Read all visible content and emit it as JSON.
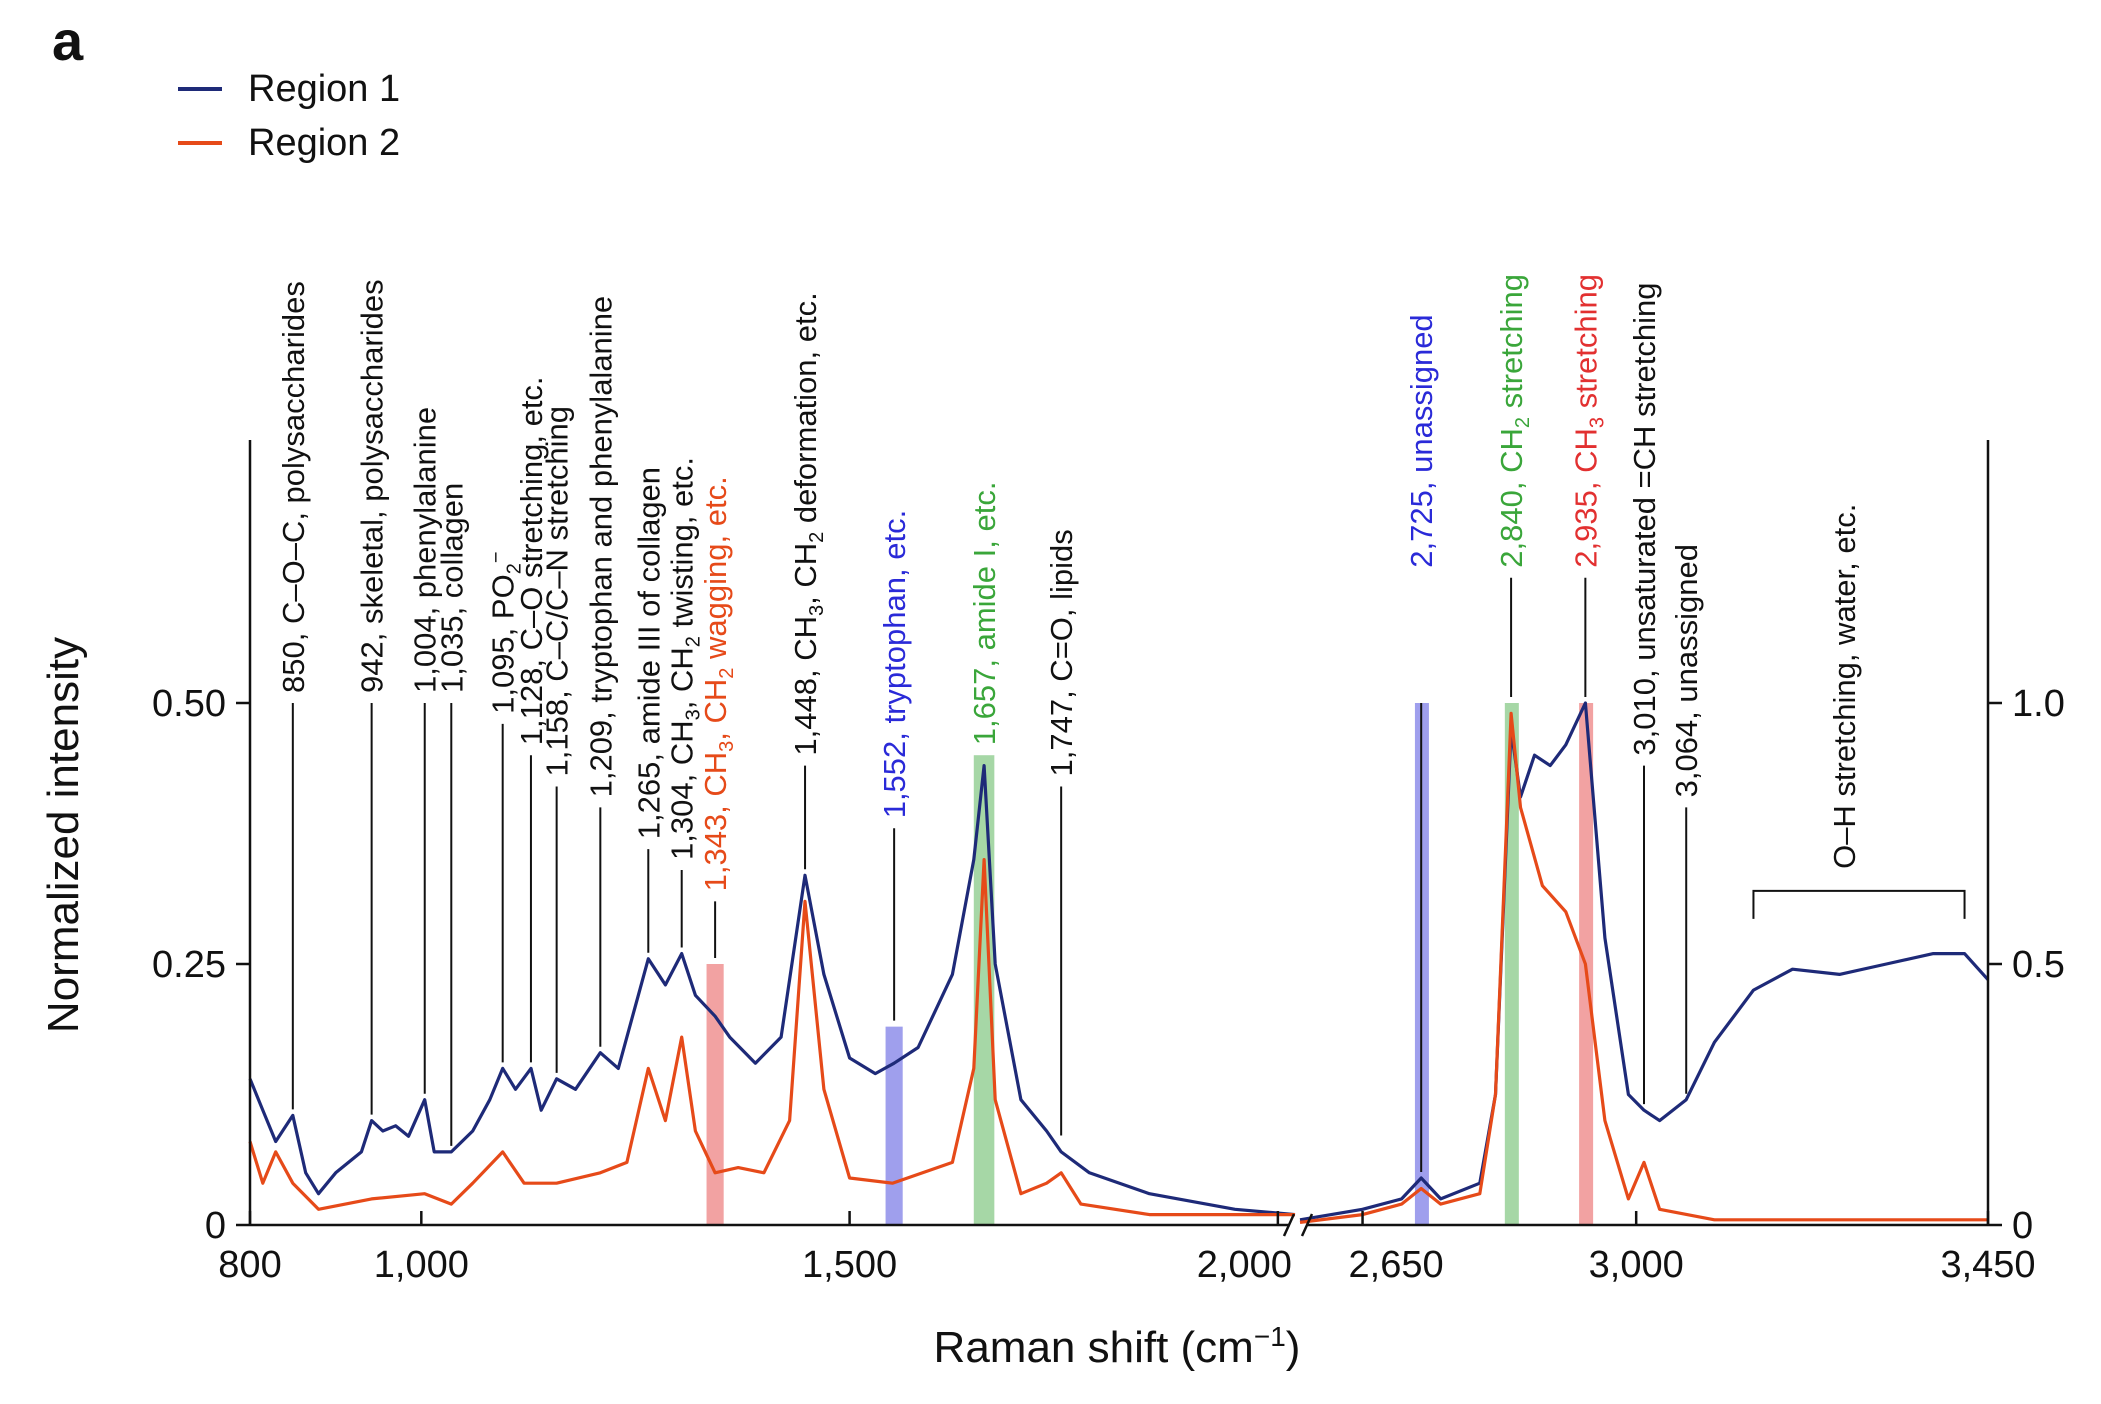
{
  "panel_label": "a",
  "colors": {
    "region1": "#1e2a78",
    "region2": "#e64a19",
    "black": "#111111",
    "blue": "#2a2ad8",
    "green": "#3aa63a",
    "red": "#e23030"
  },
  "chart_data": {
    "type": "line",
    "xlabel": "Raman shift (cm",
    "xlabel_sup": "−1",
    "xlabel_close": ")",
    "ylabel": "Normalized intensity",
    "legend_placement": "top-left",
    "segments": [
      {
        "xlim": [
          800,
          2020
        ]
      },
      {
        "xlim": [
          2570,
          3450
        ]
      }
    ],
    "ylim_left": [
      0,
      0.5
    ],
    "ylim_right": [
      0,
      1.0
    ],
    "x_ticks_left": [
      {
        "v": 800,
        "label": "800"
      },
      {
        "v": 1000,
        "label": "1,000"
      },
      {
        "v": 1500,
        "label": "1,500"
      },
      {
        "v": 2000,
        "label": "2,000"
      }
    ],
    "x_ticks_right": [
      {
        "v": 2650,
        "label": "2,650"
      },
      {
        "v": 3000,
        "label": "3,000"
      },
      {
        "v": 3450,
        "label": "3,450"
      }
    ],
    "y_ticks_left": [
      {
        "v": 0,
        "label": "0"
      },
      {
        "v": 0.25,
        "label": "0.25"
      },
      {
        "v": 0.5,
        "label": "0.50"
      }
    ],
    "y_ticks_right": [
      {
        "v": 0,
        "label": "0"
      },
      {
        "v": 0.5,
        "label": "0.5"
      },
      {
        "v": 1.0,
        "label": "1.0"
      }
    ],
    "series": [
      {
        "name": "Region 1",
        "left": [
          [
            800,
            0.14
          ],
          [
            815,
            0.11
          ],
          [
            830,
            0.08
          ],
          [
            850,
            0.105
          ],
          [
            865,
            0.05
          ],
          [
            880,
            0.03
          ],
          [
            900,
            0.05
          ],
          [
            930,
            0.07
          ],
          [
            942,
            0.1
          ],
          [
            955,
            0.09
          ],
          [
            970,
            0.095
          ],
          [
            985,
            0.085
          ],
          [
            1004,
            0.12
          ],
          [
            1015,
            0.07
          ],
          [
            1035,
            0.07
          ],
          [
            1060,
            0.09
          ],
          [
            1080,
            0.12
          ],
          [
            1095,
            0.15
          ],
          [
            1110,
            0.13
          ],
          [
            1128,
            0.15
          ],
          [
            1140,
            0.11
          ],
          [
            1158,
            0.14
          ],
          [
            1180,
            0.13
          ],
          [
            1209,
            0.165
          ],
          [
            1230,
            0.15
          ],
          [
            1265,
            0.255
          ],
          [
            1285,
            0.23
          ],
          [
            1304,
            0.26
          ],
          [
            1320,
            0.22
          ],
          [
            1343,
            0.2
          ],
          [
            1360,
            0.18
          ],
          [
            1390,
            0.155
          ],
          [
            1420,
            0.18
          ],
          [
            1448,
            0.335
          ],
          [
            1470,
            0.24
          ],
          [
            1500,
            0.16
          ],
          [
            1530,
            0.145
          ],
          [
            1552,
            0.155
          ],
          [
            1580,
            0.17
          ],
          [
            1620,
            0.24
          ],
          [
            1645,
            0.35
          ],
          [
            1657,
            0.44
          ],
          [
            1670,
            0.25
          ],
          [
            1700,
            0.12
          ],
          [
            1730,
            0.09
          ],
          [
            1747,
            0.07
          ],
          [
            1780,
            0.05
          ],
          [
            1850,
            0.03
          ],
          [
            1950,
            0.015
          ],
          [
            2020,
            0.01
          ]
        ],
        "right": [
          [
            2570,
            0.01
          ],
          [
            2650,
            0.03
          ],
          [
            2700,
            0.05
          ],
          [
            2725,
            0.09
          ],
          [
            2750,
            0.05
          ],
          [
            2800,
            0.08
          ],
          [
            2820,
            0.25
          ],
          [
            2840,
            0.95
          ],
          [
            2852,
            0.82
          ],
          [
            2870,
            0.9
          ],
          [
            2890,
            0.88
          ],
          [
            2910,
            0.92
          ],
          [
            2935,
            1.0
          ],
          [
            2960,
            0.55
          ],
          [
            2990,
            0.25
          ],
          [
            3010,
            0.22
          ],
          [
            3030,
            0.2
          ],
          [
            3064,
            0.24
          ],
          [
            3100,
            0.35
          ],
          [
            3150,
            0.45
          ],
          [
            3200,
            0.49
          ],
          [
            3260,
            0.48
          ],
          [
            3320,
            0.5
          ],
          [
            3380,
            0.52
          ],
          [
            3420,
            0.52
          ],
          [
            3450,
            0.47
          ]
        ]
      },
      {
        "name": "Region 2",
        "left": [
          [
            800,
            0.08
          ],
          [
            815,
            0.04
          ],
          [
            830,
            0.07
          ],
          [
            850,
            0.04
          ],
          [
            880,
            0.015
          ],
          [
            942,
            0.025
          ],
          [
            1004,
            0.03
          ],
          [
            1035,
            0.02
          ],
          [
            1060,
            0.04
          ],
          [
            1095,
            0.07
          ],
          [
            1120,
            0.04
          ],
          [
            1158,
            0.04
          ],
          [
            1209,
            0.05
          ],
          [
            1240,
            0.06
          ],
          [
            1265,
            0.15
          ],
          [
            1285,
            0.1
          ],
          [
            1304,
            0.18
          ],
          [
            1320,
            0.09
          ],
          [
            1343,
            0.05
          ],
          [
            1370,
            0.055
          ],
          [
            1400,
            0.05
          ],
          [
            1430,
            0.1
          ],
          [
            1448,
            0.31
          ],
          [
            1470,
            0.13
          ],
          [
            1500,
            0.045
          ],
          [
            1550,
            0.04
          ],
          [
            1620,
            0.06
          ],
          [
            1645,
            0.15
          ],
          [
            1657,
            0.35
          ],
          [
            1670,
            0.12
          ],
          [
            1700,
            0.03
          ],
          [
            1730,
            0.04
          ],
          [
            1747,
            0.05
          ],
          [
            1770,
            0.02
          ],
          [
            1850,
            0.01
          ],
          [
            2020,
            0.01
          ]
        ],
        "right": [
          [
            2570,
            0.005
          ],
          [
            2650,
            0.02
          ],
          [
            2700,
            0.04
          ],
          [
            2725,
            0.07
          ],
          [
            2750,
            0.04
          ],
          [
            2800,
            0.06
          ],
          [
            2820,
            0.25
          ],
          [
            2840,
            0.98
          ],
          [
            2852,
            0.8
          ],
          [
            2880,
            0.65
          ],
          [
            2910,
            0.6
          ],
          [
            2935,
            0.5
          ],
          [
            2960,
            0.2
          ],
          [
            2990,
            0.05
          ],
          [
            3010,
            0.12
          ],
          [
            3030,
            0.03
          ],
          [
            3100,
            0.01
          ],
          [
            3450,
            0.01
          ]
        ]
      }
    ],
    "highlight_bands": [
      {
        "x": 1343,
        "width": 20,
        "top": 0.25,
        "color": "red"
      },
      {
        "x": 1552,
        "width": 20,
        "top": 0.19,
        "color": "blue"
      },
      {
        "x": 1657,
        "width": 24,
        "top": 0.45,
        "color": "green"
      },
      {
        "x": 2725,
        "width": 16,
        "top": 1.0,
        "color": "blue"
      },
      {
        "x": 2840,
        "width": 16,
        "top": 1.0,
        "color": "green"
      },
      {
        "x": 2935,
        "width": 16,
        "top": 1.0,
        "color": "red"
      }
    ],
    "annotations": [
      {
        "x": 850,
        "segment": 0,
        "line_bottom": 0.105,
        "line_top": 0.5,
        "text_base": 0.5,
        "color": "black",
        "text": "850, C–O–C, polysaccharides"
      },
      {
        "x": 942,
        "segment": 0,
        "line_bottom": 0.1,
        "line_top": 0.5,
        "text_base": 0.5,
        "color": "black",
        "text": "942, skeletal, polysaccharides"
      },
      {
        "x": 1004,
        "segment": 0,
        "line_bottom": 0.12,
        "line_top": 0.5,
        "text_base": 0.5,
        "color": "black",
        "text": "1,004, phenylalanine"
      },
      {
        "x": 1035,
        "segment": 0,
        "line_bottom": 0.07,
        "line_top": 0.5,
        "text_base": 0.5,
        "color": "black",
        "text": "1,035, collagen"
      },
      {
        "x": 1095,
        "segment": 0,
        "line_bottom": 0.15,
        "line_top": 0.48,
        "text_base": 0.48,
        "color": "black",
        "text": "1,095, PO",
        "sub": "2",
        "sup": "−"
      },
      {
        "x": 1128,
        "segment": 0,
        "line_bottom": 0.15,
        "line_top": 0.45,
        "text_base": 0.45,
        "color": "black",
        "text": "1,128, C–O stretching, etc."
      },
      {
        "x": 1158,
        "segment": 0,
        "line_bottom": 0.14,
        "line_top": 0.42,
        "text_base": 0.42,
        "color": "black",
        "text": "1,158, C–C/C–N stretching"
      },
      {
        "x": 1209,
        "segment": 0,
        "line_bottom": 0.165,
        "line_top": 0.4,
        "text_base": 0.4,
        "color": "black",
        "text": "1,209, tryptophan and phenylalanine"
      },
      {
        "x": 1265,
        "segment": 0,
        "line_bottom": 0.255,
        "line_top": 0.36,
        "text_base": 0.36,
        "color": "black",
        "text": "1,265, amide III of collagen"
      },
      {
        "x": 1304,
        "segment": 0,
        "line_bottom": 0.26,
        "line_top": 0.34,
        "text_base": 0.34,
        "color": "black",
        "rich": [
          [
            "1,304, CH",
            ""
          ],
          [
            "3",
            "sub"
          ],
          [
            ", CH",
            ""
          ],
          [
            "2",
            "sub"
          ],
          [
            " twisting, etc.",
            ""
          ]
        ]
      },
      {
        "x": 1343,
        "segment": 0,
        "line_bottom": 0.25,
        "line_top": 0.31,
        "text_base": 0.31,
        "color": "region2",
        "rich": [
          [
            "1,343, CH",
            ""
          ],
          [
            "3",
            "sub"
          ],
          [
            ", CH",
            ""
          ],
          [
            "2",
            "sub"
          ],
          [
            " wagging, etc.",
            ""
          ]
        ]
      },
      {
        "x": 1448,
        "segment": 0,
        "line_bottom": 0.335,
        "line_top": 0.44,
        "text_base": 0.44,
        "color": "black",
        "rich": [
          [
            "1,448, CH",
            ""
          ],
          [
            "3",
            "sub"
          ],
          [
            ", CH",
            ""
          ],
          [
            "2",
            "sub"
          ],
          [
            " deformation, etc.",
            ""
          ]
        ]
      },
      {
        "x": 1552,
        "segment": 0,
        "line_bottom": 0.19,
        "line_top": 0.38,
        "text_base": 0.38,
        "color": "blue",
        "text": "1,552, tryptophan, etc."
      },
      {
        "x": 1657,
        "segment": 0,
        "line_bottom": 0.45,
        "line_top": 0.45,
        "text_base": 0.45,
        "color": "green",
        "text": "1,657, amide I, etc."
      },
      {
        "x": 1747,
        "segment": 0,
        "line_bottom": 0.08,
        "line_top": 0.42,
        "text_base": 0.42,
        "color": "black",
        "text": "1,747, C=O, lipids"
      },
      {
        "x": 2725,
        "segment": 1,
        "line_bottom": 0.09,
        "line_top": 1.0,
        "text_base": 1.24,
        "color": "blue",
        "text": "2,725, unassigned"
      },
      {
        "x": 2840,
        "segment": 1,
        "line_bottom": 1.0,
        "line_top": 1.24,
        "text_base": 1.24,
        "color": "green",
        "rich": [
          [
            "2,840, CH",
            ""
          ],
          [
            "2",
            "sub"
          ],
          [
            " stretching",
            ""
          ]
        ]
      },
      {
        "x": 2935,
        "segment": 1,
        "line_bottom": 1.0,
        "line_top": 1.24,
        "text_base": 1.24,
        "color": "red",
        "rich": [
          [
            "2,935, CH",
            ""
          ],
          [
            "3",
            "sub"
          ],
          [
            " stretching",
            ""
          ]
        ]
      },
      {
        "x": 3010,
        "segment": 1,
        "line_bottom": 0.22,
        "line_top": 0.88,
        "text_base": 0.88,
        "color": "black",
        "text": "3,010, unsaturated =CH stretching"
      },
      {
        "x": 3064,
        "segment": 1,
        "line_bottom": 0.24,
        "line_top": 0.8,
        "text_base": 0.8,
        "color": "black",
        "text": "3,064, unassigned"
      }
    ],
    "bracket": {
      "x1": 3150,
      "x2": 3420,
      "y": 0.64,
      "text_base": 0.7,
      "text": "O–H stretching, water, etc."
    }
  }
}
